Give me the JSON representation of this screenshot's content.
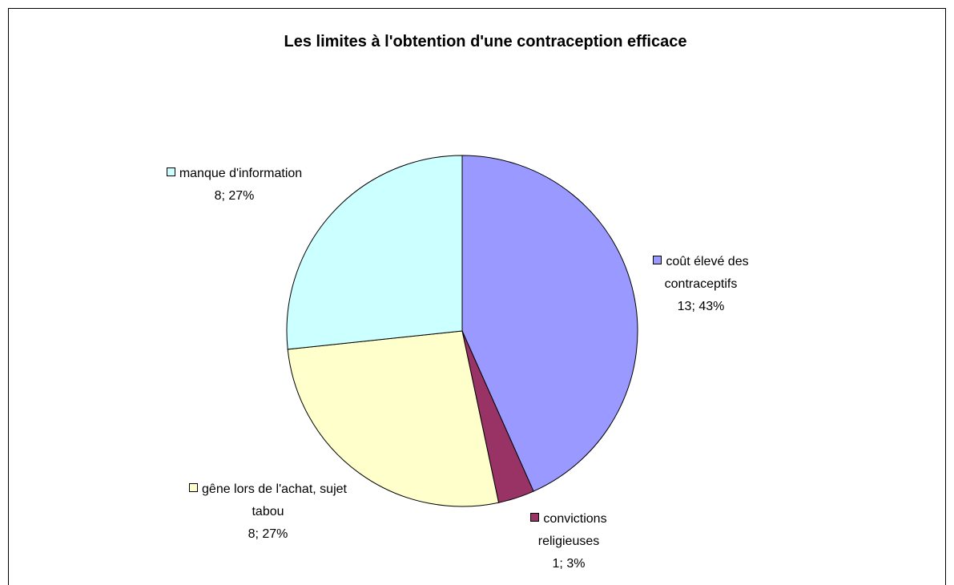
{
  "chart_data": {
    "type": "pie",
    "title": "Les limites à l'obtention d'une contraception efficace",
    "categories": [
      "coût élevé des contraceptifs",
      "convictions religieuses",
      "gêne lors de l'achat, sujet tabou",
      "manque d'information"
    ],
    "values": [
      13,
      1,
      8,
      8
    ],
    "value_labels": [
      "13; 43%",
      "1; 3%",
      "8; 27%",
      "8; 27%"
    ],
    "colors": [
      "#9999ff",
      "#993366",
      "#ffffcc",
      "#ccffff"
    ]
  }
}
